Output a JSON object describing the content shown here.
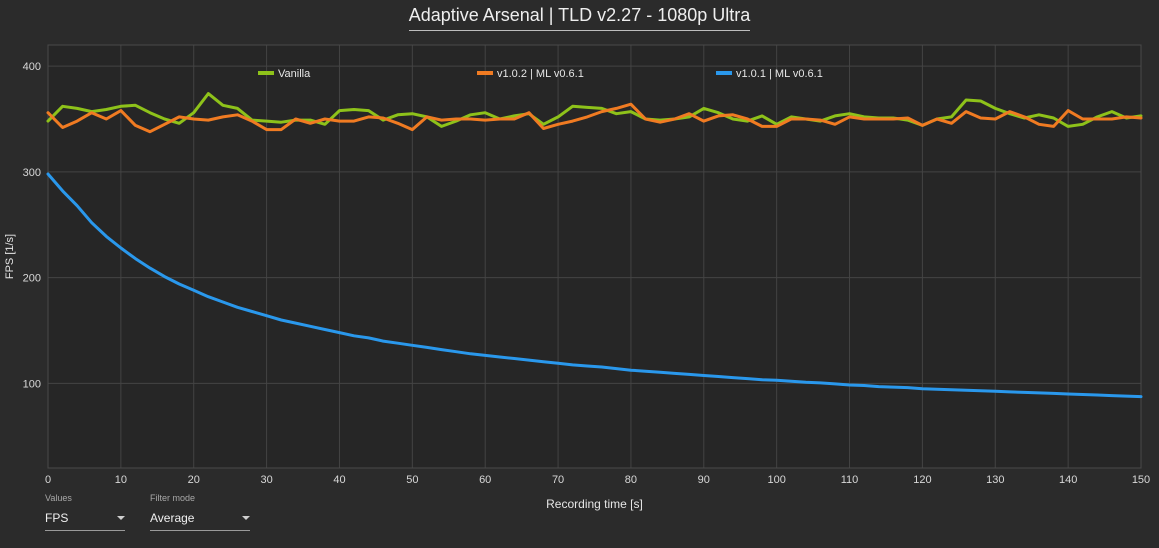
{
  "chart_data": {
    "type": "line",
    "title": "Adaptive Arsenal | TLD v2.27 - 1080p Ultra",
    "xlabel": "Recording time [s]",
    "ylabel": "FPS [1/s]",
    "xlim": [
      0,
      150
    ],
    "ylim": [
      20,
      420
    ],
    "xticks": [
      0,
      10,
      20,
      30,
      40,
      50,
      60,
      70,
      80,
      90,
      100,
      110,
      120,
      130,
      140,
      150
    ],
    "yticks": [
      100,
      200,
      300,
      400
    ],
    "grid": true,
    "legend_position": "top",
    "series": [
      {
        "name": "Vanilla",
        "color": "#8ec21a",
        "x": [
          0,
          2,
          4,
          6,
          8,
          10,
          12,
          14,
          16,
          18,
          20,
          22,
          24,
          26,
          28,
          30,
          32,
          34,
          36,
          38,
          40,
          42,
          44,
          46,
          48,
          50,
          52,
          54,
          56,
          58,
          60,
          62,
          64,
          66,
          68,
          70,
          72,
          74,
          76,
          78,
          80,
          82,
          84,
          86,
          88,
          90,
          92,
          94,
          96,
          98,
          100,
          102,
          104,
          106,
          108,
          110,
          112,
          114,
          116,
          118,
          120,
          122,
          124,
          126,
          128,
          130,
          132,
          134,
          136,
          138,
          140,
          142,
          144,
          146,
          148,
          150
        ],
        "values": [
          348,
          362,
          360,
          357,
          359,
          362,
          363,
          356,
          350,
          346,
          356,
          374,
          363,
          360,
          349,
          348,
          347,
          349,
          349,
          345,
          358,
          359,
          358,
          349,
          354,
          355,
          352,
          343,
          348,
          354,
          356,
          350,
          353,
          355,
          345,
          352,
          362,
          361,
          360,
          355,
          357,
          350,
          349,
          350,
          352,
          360,
          356,
          350,
          348,
          353,
          345,
          352,
          350,
          348,
          353,
          355,
          352,
          351,
          351,
          349,
          344,
          350,
          352,
          368,
          367,
          360,
          355,
          351,
          354,
          351,
          343,
          345,
          352,
          357,
          351,
          353
        ]
      },
      {
        "name": "v1.0.2 | ML v0.6.1",
        "color": "#f07b22",
        "x": [
          0,
          2,
          4,
          6,
          8,
          10,
          12,
          14,
          16,
          18,
          20,
          22,
          24,
          26,
          28,
          30,
          32,
          34,
          36,
          38,
          40,
          42,
          44,
          46,
          48,
          50,
          52,
          54,
          56,
          58,
          60,
          62,
          64,
          66,
          68,
          70,
          72,
          74,
          76,
          78,
          80,
          82,
          84,
          86,
          88,
          90,
          92,
          94,
          96,
          98,
          100,
          102,
          104,
          106,
          108,
          110,
          112,
          114,
          116,
          118,
          120,
          122,
          124,
          126,
          128,
          130,
          132,
          134,
          136,
          138,
          140,
          142,
          144,
          146,
          148,
          150
        ],
        "values": [
          356,
          342,
          348,
          356,
          350,
          358,
          344,
          338,
          345,
          352,
          350,
          349,
          352,
          354,
          348,
          340,
          340,
          350,
          346,
          350,
          348,
          348,
          352,
          351,
          346,
          340,
          352,
          349,
          350,
          350,
          349,
          350,
          350,
          356,
          341,
          345,
          348,
          352,
          357,
          360,
          364,
          350,
          347,
          350,
          355,
          348,
          353,
          354,
          350,
          343,
          343,
          350,
          350,
          349,
          345,
          352,
          350,
          350,
          350,
          351,
          344,
          350,
          346,
          357,
          351,
          350,
          357,
          352,
          345,
          343,
          358,
          350,
          350,
          350,
          352,
          351
        ]
      },
      {
        "name": "v1.0.1 | ML v0.6.1",
        "color": "#2a98ec",
        "x": [
          0,
          2,
          4,
          6,
          8,
          10,
          12,
          14,
          16,
          18,
          20,
          22,
          24,
          26,
          28,
          30,
          32,
          34,
          36,
          38,
          40,
          42,
          44,
          46,
          48,
          50,
          52,
          54,
          56,
          58,
          60,
          62,
          64,
          66,
          68,
          70,
          72,
          74,
          76,
          78,
          80,
          82,
          84,
          86,
          88,
          90,
          92,
          94,
          96,
          98,
          100,
          102,
          104,
          106,
          108,
          110,
          112,
          114,
          116,
          118,
          120,
          122,
          124,
          126,
          128,
          130,
          132,
          134,
          136,
          138,
          140,
          142,
          144,
          146,
          148,
          150
        ],
        "values": [
          298,
          282,
          268,
          252,
          239,
          228,
          218,
          209,
          201,
          194,
          188,
          182,
          177,
          172,
          168,
          164,
          160,
          157,
          154,
          151,
          148,
          145,
          143,
          140,
          138,
          136,
          134,
          132,
          130,
          128,
          126.5,
          125,
          123.5,
          122,
          120.5,
          119,
          117.5,
          116.5,
          115.5,
          114,
          112.5,
          111.5,
          110.5,
          109.5,
          108.5,
          107.5,
          106.5,
          105.5,
          104.5,
          103.5,
          103,
          102,
          101,
          100.5,
          99.5,
          98.5,
          98,
          97,
          96.5,
          96,
          95,
          94.5,
          94,
          93.5,
          93,
          92.5,
          92,
          91.5,
          91,
          90.5,
          90,
          89.5,
          89,
          88.5,
          88,
          87.5
        ]
      }
    ]
  },
  "controls": {
    "values_label": "Values",
    "values_selected": "FPS",
    "filter_label": "Filter mode",
    "filter_selected": "Average"
  }
}
